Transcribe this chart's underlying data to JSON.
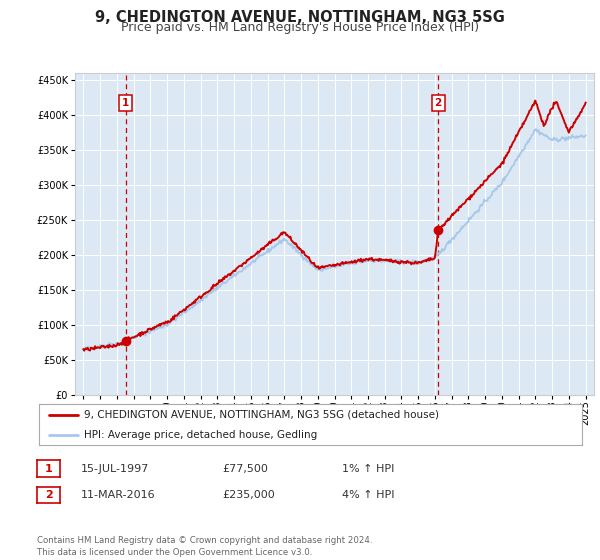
{
  "title": "9, CHEDINGTON AVENUE, NOTTINGHAM, NG3 5SG",
  "subtitle": "Price paid vs. HM Land Registry's House Price Index (HPI)",
  "bg_color": "#dce9f5",
  "fig_bg_color": "#ffffff",
  "ylabel": "",
  "ylim": [
    0,
    460000
  ],
  "yticks": [
    0,
    50000,
    100000,
    150000,
    200000,
    250000,
    300000,
    350000,
    400000,
    450000
  ],
  "xlim": [
    1994.5,
    2025.5
  ],
  "xticks": [
    1995,
    1996,
    1997,
    1998,
    1999,
    2000,
    2001,
    2002,
    2003,
    2004,
    2005,
    2006,
    2007,
    2008,
    2009,
    2010,
    2011,
    2012,
    2013,
    2014,
    2015,
    2016,
    2017,
    2018,
    2019,
    2020,
    2021,
    2022,
    2023,
    2024,
    2025
  ],
  "hpi_color": "#a8c8e8",
  "price_color": "#cc0000",
  "marker_color": "#cc0000",
  "sale1_x": 1997.54,
  "sale1_y": 77500,
  "sale2_x": 2016.19,
  "sale2_y": 235000,
  "vline_color": "#cc0000",
  "legend_label_price": "9, CHEDINGTON AVENUE, NOTTINGHAM, NG3 5SG (detached house)",
  "legend_label_hpi": "HPI: Average price, detached house, Gedling",
  "table_row1": [
    "1",
    "15-JUL-1997",
    "£77,500",
    "1% ↑ HPI"
  ],
  "table_row2": [
    "2",
    "11-MAR-2016",
    "£235,000",
    "4% ↑ HPI"
  ],
  "footer": "Contains HM Land Registry data © Crown copyright and database right 2024.\nThis data is licensed under the Open Government Licence v3.0.",
  "grid_color": "#ffffff",
  "title_fontsize": 10.5,
  "subtitle_fontsize": 9,
  "tick_fontsize": 7,
  "legend_fontsize": 7.5
}
